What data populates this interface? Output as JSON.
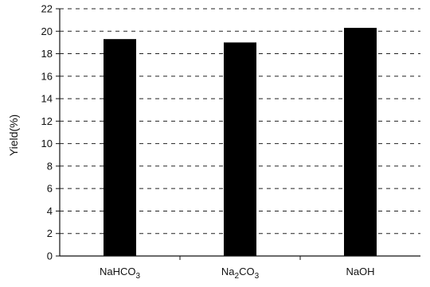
{
  "chart_data": {
    "type": "bar",
    "categories": [
      "NaHCO3",
      "Na2CO3",
      "NaOH"
    ],
    "category_labels": [
      {
        "base": "NaHCO",
        "sub": "3",
        "tail": ""
      },
      {
        "base": "Na",
        "sub": "2",
        "tail": "CO",
        "sub2": "3"
      },
      {
        "base": "NaOH",
        "sub": "",
        "tail": ""
      }
    ],
    "values": [
      19.3,
      19.0,
      20.3
    ],
    "title": "",
    "xlabel": "",
    "ylabel": "Yield(%)",
    "ylim": [
      0,
      22
    ],
    "yticks": [
      0,
      2,
      4,
      6,
      8,
      10,
      12,
      14,
      16,
      18,
      20,
      22
    ],
    "grid": "horizontal-dashed",
    "legend": "none",
    "bar_color": "#000000"
  }
}
